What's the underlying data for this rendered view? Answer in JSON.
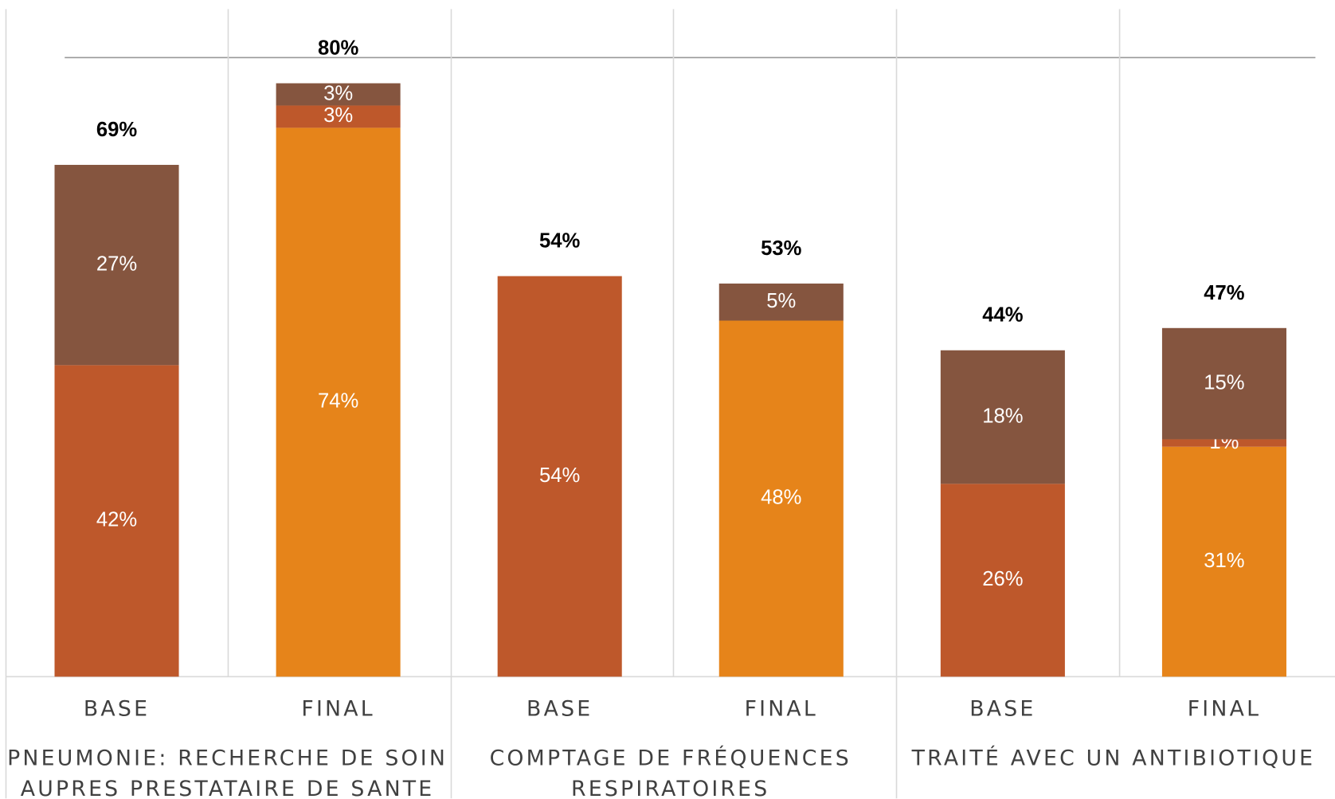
{
  "chart_data": {
    "type": "stacked_bar",
    "categories": [
      "BASE",
      "FINAL",
      "BASE",
      "FINAL",
      "BASE",
      "FINAL"
    ],
    "groups": [
      "PNEUMONIE: RECHERCHE DE SOIN AUPRES PRESTATAIRE DE SANTE",
      "COMPTAGE DE FRÉQUENCES RESPIRATOIRES",
      "TRAITÉ AVEC UN ANTIBIOTIQUE"
    ],
    "series": [
      {
        "color": "#e6841a",
        "values": [
          null,
          74,
          null,
          48,
          null,
          31
        ],
        "value_labels": [
          null,
          "74%",
          null,
          "48%",
          null,
          "31%"
        ]
      },
      {
        "color": "#be582b",
        "values": [
          42,
          3,
          54,
          null,
          26,
          1
        ],
        "value_labels": [
          "42%",
          "3%",
          "54%",
          null,
          "26%",
          "1%"
        ]
      },
      {
        "color": "#85553f",
        "values": [
          27,
          3,
          null,
          5,
          18,
          15
        ],
        "value_labels": [
          "27%",
          "3%",
          null,
          "5%",
          "18%",
          "15%"
        ]
      }
    ],
    "totals": [
      69,
      80,
      54,
      53,
      44,
      47
    ],
    "total_labels": [
      "69%",
      "80%",
      "54%",
      "53%",
      "44%",
      "47%"
    ],
    "ylim": [
      0,
      90
    ]
  }
}
